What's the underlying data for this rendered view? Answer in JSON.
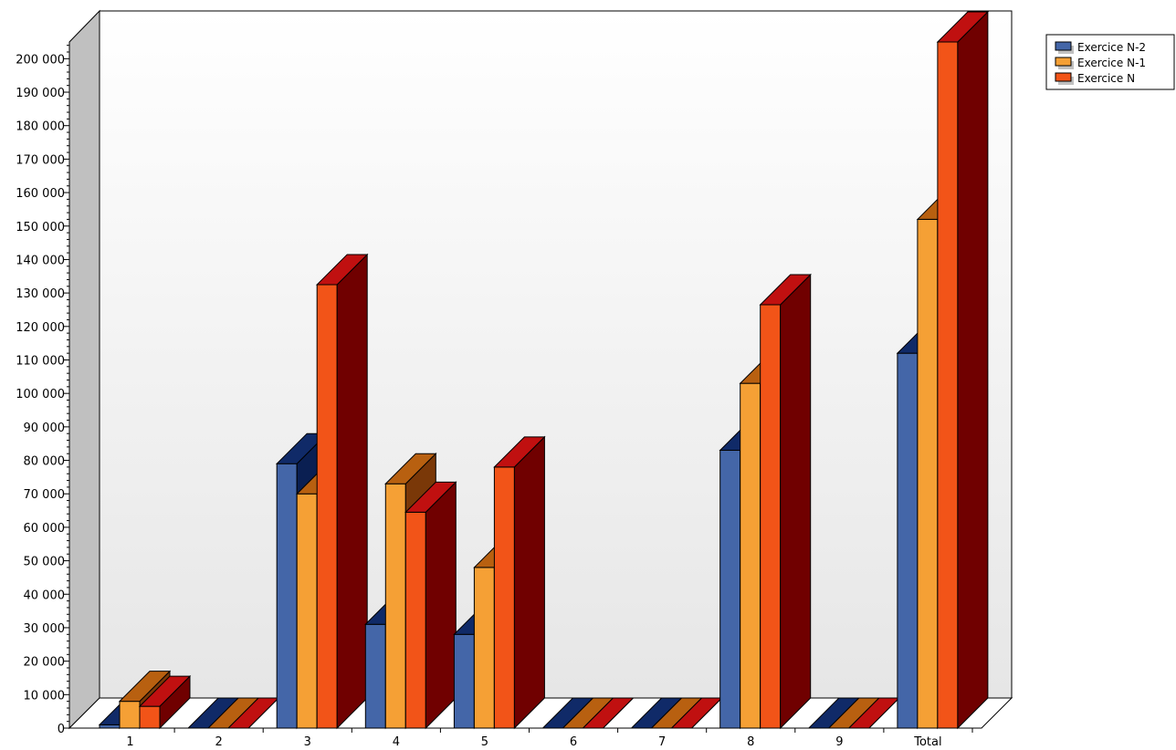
{
  "chart_data": {
    "type": "bar",
    "title": "",
    "xlabel": "",
    "ylabel": "",
    "categories": [
      "1",
      "2",
      "3",
      "4",
      "5",
      "6",
      "7",
      "8",
      "9",
      "Total"
    ],
    "series": [
      {
        "name": "Exercice N-2",
        "values": [
          1000,
          0,
          79000,
          31000,
          28000,
          0,
          0,
          83000,
          0,
          112000
        ]
      },
      {
        "name": "Exercice N-1",
        "values": [
          8000,
          0,
          70000,
          73000,
          48000,
          0,
          0,
          103000,
          0,
          152000
        ]
      },
      {
        "name": "Exercice N",
        "values": [
          6500,
          0,
          132500,
          64500,
          78000,
          0,
          0,
          126500,
          0,
          205000
        ]
      }
    ],
    "ylim": [
      0,
      205000
    ],
    "yticks": [
      {
        "value": 0,
        "label": "0"
      },
      {
        "value": 10000,
        "label": "10 000"
      },
      {
        "value": 20000,
        "label": "20 000"
      },
      {
        "value": 30000,
        "label": "30 000"
      },
      {
        "value": 40000,
        "label": "40 000"
      },
      {
        "value": 50000,
        "label": "50 000"
      },
      {
        "value": 60000,
        "label": "60 000"
      },
      {
        "value": 70000,
        "label": "70 000"
      },
      {
        "value": 80000,
        "label": "80 000"
      },
      {
        "value": 90000,
        "label": "90 000"
      },
      {
        "value": 100000,
        "label": "100 000"
      },
      {
        "value": 110000,
        "label": "110 000"
      },
      {
        "value": 120000,
        "label": "120 000"
      },
      {
        "value": 130000,
        "label": "130 000"
      },
      {
        "value": 140000,
        "label": "140 000"
      },
      {
        "value": 150000,
        "label": "150 000"
      },
      {
        "value": 160000,
        "label": "160 000"
      },
      {
        "value": 170000,
        "label": "170 000"
      },
      {
        "value": 180000,
        "label": "180 000"
      },
      {
        "value": 190000,
        "label": "190 000"
      },
      {
        "value": 200000,
        "label": "200 000"
      }
    ],
    "grid": false,
    "legend_position": "top-right",
    "style": "3d",
    "colors": {
      "series": [
        {
          "front": "#4466a8",
          "top": "#102a68",
          "side": "#0a1f52"
        },
        {
          "front": "#f5a035",
          "top": "#b86010",
          "side": "#7a3808"
        },
        {
          "front": "#f25418",
          "top": "#c01010",
          "side": "#700000"
        }
      ],
      "left_wall": "#c0c0c0",
      "back_wall_top": "#ffffff",
      "back_wall_bottom": "#e6e6e6"
    }
  }
}
